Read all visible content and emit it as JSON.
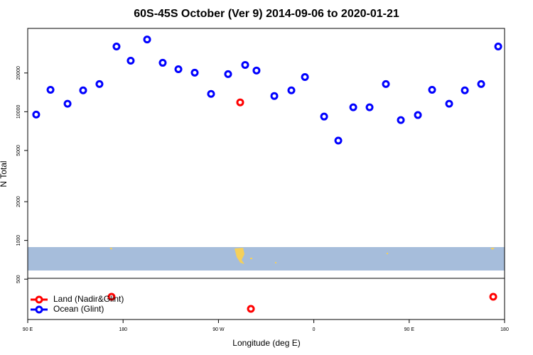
{
  "chart_data": {
    "type": "scatter",
    "title": "60S-45S October (Ver 9)   2014-09-06 to 2020-01-21",
    "x_label": "Longitude (deg E)",
    "y_label": "N Total",
    "y_scale": "log",
    "grid": false,
    "legend_position": "bottomleft",
    "xlim": [
      90,
      540
    ],
    "xticks": [
      {
        "value": 90,
        "label": "90 E"
      },
      180,
      {
        "value": 270,
        "label": "90 W"
      },
      {
        "value": 360,
        "label": "0"
      },
      {
        "value": 450,
        "label": "90 E"
      },
      {
        "value": 540,
        "label": "180"
      }
    ],
    "ylim": [
      243,
      44400
    ],
    "yticks": [
      500,
      1000,
      2000,
      5000,
      10000,
      20000
    ],
    "series": [
      {
        "name": "Land (Nadir&Glint)",
        "color": "#ff0000",
        "x": [
          290.5,
          169.1,
          300.6,
          529.3
        ],
        "values": [
          11820,
          365,
          294,
          365
        ]
      },
      {
        "name": "Ocean (Glint)",
        "color": "#0000ff",
        "x": [
          98,
          111.5,
          127.6,
          142.3,
          157.7,
          173.8,
          187.2,
          202.7,
          217.4,
          232.2,
          247.6,
          263,
          279.1,
          295.2,
          305.9,
          322.7,
          338.8,
          351.6,
          369.7,
          383.1,
          397.2,
          412.6,
          428,
          442.1,
          458.2,
          471.6,
          487.7,
          502.5,
          517.9,
          534
        ],
        "values": [
          9500,
          14800,
          11530,
          14650,
          16400,
          32100,
          24900,
          36400,
          24000,
          21400,
          20100,
          13760,
          19600,
          23100,
          20900,
          13250,
          14650,
          18600,
          9170,
          5970,
          10820,
          10820,
          16400,
          8610,
          9420,
          14800,
          11530,
          14650,
          16400,
          32100
        ]
      }
    ]
  }
}
